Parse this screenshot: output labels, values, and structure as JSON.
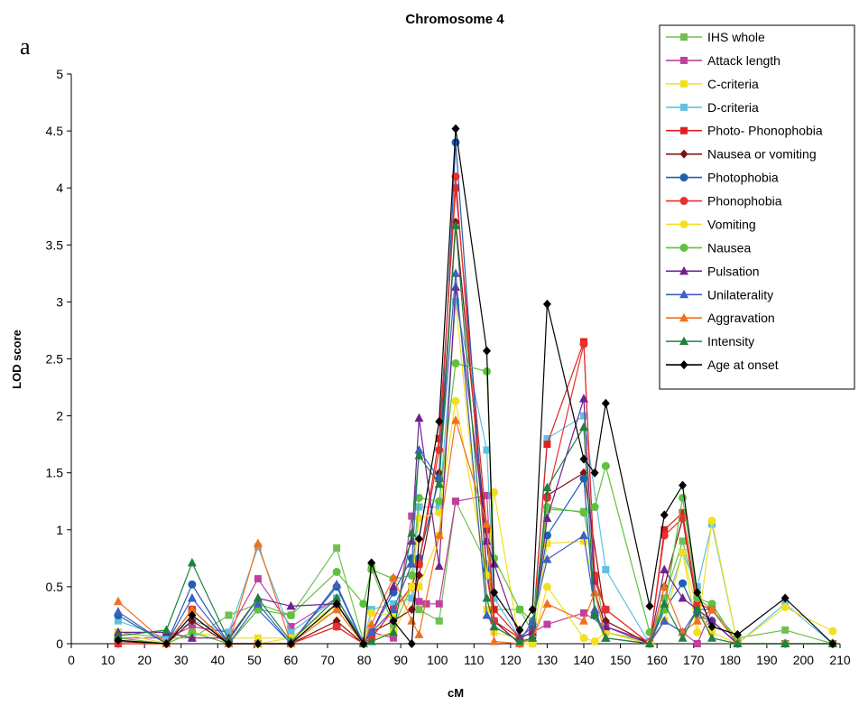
{
  "chart_data": {
    "type": "line",
    "panel_label": "a",
    "title": "Chromosome 4",
    "xlabel": "cM",
    "ylabel": "LOD score",
    "xlim": [
      0,
      210
    ],
    "ylim": [
      0,
      5
    ],
    "xticks": [
      0,
      10,
      20,
      30,
      40,
      50,
      60,
      70,
      80,
      90,
      100,
      110,
      120,
      130,
      140,
      150,
      160,
      170,
      180,
      190,
      200,
      210
    ],
    "yticks": [
      0,
      0.5,
      1,
      1.5,
      2,
      2.5,
      3,
      3.5,
      4,
      4.5,
      5
    ],
    "grid": false,
    "legend_position": "top-right",
    "series": [
      {
        "name": "IHS whole",
        "color": "#70c050",
        "marker": "square",
        "x": [
          12.8,
          26,
          33,
          43,
          51,
          60,
          72.5,
          79.8,
          82,
          88,
          93,
          95,
          100.5,
          105,
          113.5,
          115.5,
          122.5,
          126,
          130,
          140,
          146,
          158,
          162,
          167,
          171,
          175,
          182,
          195,
          208
        ],
        "y": [
          0.1,
          0.05,
          0.05,
          0.25,
          0.35,
          0.25,
          0.84,
          0.02,
          0.67,
          0.15,
          0.5,
          0.3,
          0.2,
          1.25,
          0.7,
          0.3,
          0.3,
          0.1,
          1.18,
          1.16,
          0.1,
          0.02,
          0.4,
          0.9,
          0.4,
          0.3,
          0.05,
          0.12,
          0
        ]
      },
      {
        "name": "Attack length",
        "color": "#c040a0",
        "marker": "square",
        "x": [
          12.8,
          26,
          33,
          43,
          51,
          60,
          72.5,
          79.8,
          82,
          88,
          93,
          95,
          97,
          100.5,
          105,
          113.5,
          115.5,
          122.5,
          126,
          130,
          140,
          146,
          158,
          162,
          167,
          171,
          175,
          182,
          195,
          208
        ],
        "y": [
          0.05,
          0.05,
          0.15,
          0.1,
          0.57,
          0.15,
          0.4,
          0.02,
          0.1,
          0.05,
          1.12,
          0.37,
          0.35,
          0.35,
          1.25,
          1.3,
          0.2,
          0.05,
          0.1,
          0.17,
          0.27,
          0.15,
          0.02,
          0.2,
          0.1,
          0,
          0.3,
          0,
          0,
          0
        ]
      },
      {
        "name": "C-criteria",
        "color": "#f0e020",
        "marker": "square",
        "x": [
          12.8,
          26,
          33,
          43,
          51,
          60,
          72.5,
          79.8,
          82,
          88,
          93,
          95,
          100.5,
          105,
          113.5,
          115.5,
          122.5,
          126,
          130,
          140,
          146,
          158,
          162,
          167,
          171,
          175,
          182,
          195,
          208
        ],
        "y": [
          0.05,
          0,
          0.1,
          0.05,
          0.05,
          0.05,
          0.35,
          0,
          0.05,
          0.1,
          0.4,
          0.5,
          0.95,
          3.0,
          0.3,
          0.1,
          0.05,
          0,
          0.88,
          0.9,
          0.1,
          0,
          0.2,
          0.8,
          0.3,
          0.1,
          0,
          0,
          0
        ]
      },
      {
        "name": "D-criteria",
        "color": "#60c0e0",
        "marker": "square",
        "x": [
          12.8,
          26,
          33,
          43,
          51,
          60,
          72.5,
          79.8,
          82,
          88,
          93,
          95,
          100.5,
          105,
          113.5,
          115.5,
          122.5,
          126,
          130,
          140,
          146,
          158,
          162,
          167,
          171,
          175,
          182,
          195,
          208
        ],
        "y": [
          0.2,
          0.05,
          0.2,
          0.1,
          0.85,
          0.1,
          0.4,
          0.02,
          0.3,
          0.35,
          0.4,
          1.2,
          1.2,
          3.0,
          1.7,
          0.4,
          0.05,
          0.1,
          1.8,
          2.0,
          0.65,
          0,
          0.3,
          0.8,
          0.5,
          1.05,
          0,
          0.35,
          0
        ]
      },
      {
        "name": "Photo- Phonophobia",
        "color": "#e02020",
        "marker": "square",
        "x": [
          12.8,
          26,
          33,
          43,
          51,
          60,
          72.5,
          79.8,
          82,
          88,
          93,
          95,
          100.5,
          105,
          113.5,
          115.5,
          122.5,
          126,
          130,
          140,
          143,
          146,
          158,
          162,
          167,
          171,
          175,
          182,
          195,
          208
        ],
        "y": [
          0,
          0,
          0.3,
          0,
          0,
          0,
          0.15,
          0,
          0.05,
          0.3,
          0.5,
          0.7,
          1.8,
          4.0,
          1.0,
          0.3,
          0.05,
          0.1,
          1.75,
          2.65,
          0.55,
          0.3,
          0,
          1.0,
          1.15,
          0.35,
          0.3,
          0,
          0,
          0
        ]
      },
      {
        "name": "Nausea or vomiting",
        "color": "#801010",
        "marker": "diamond",
        "x": [
          12.8,
          26,
          33,
          43,
          51,
          60,
          72.5,
          79.8,
          82,
          88,
          93,
          95,
          100.5,
          105,
          113.5,
          115.5,
          122.5,
          126,
          130,
          140,
          146,
          158,
          162,
          167,
          171,
          175,
          182,
          195,
          208
        ],
        "y": [
          0.02,
          0,
          0.2,
          0,
          0,
          0,
          0.2,
          0,
          0.1,
          0.2,
          0.3,
          0.6,
          1.5,
          3.7,
          0.9,
          0.2,
          0,
          0.05,
          1.3,
          1.5,
          0.2,
          0,
          0.5,
          1.1,
          0.3,
          0.2,
          0,
          0,
          0
        ]
      },
      {
        "name": "Photophobia",
        "color": "#2060b0",
        "marker": "circle",
        "x": [
          12.8,
          26,
          33,
          43,
          51,
          60,
          72.5,
          79.8,
          82,
          88,
          93,
          95,
          100.5,
          105,
          113.5,
          115.5,
          122.5,
          126,
          130,
          140,
          143,
          146,
          158,
          162,
          167,
          171,
          175,
          182,
          195,
          208
        ],
        "y": [
          0.25,
          0,
          0.52,
          0,
          0.3,
          0,
          0.5,
          0,
          0.1,
          0.45,
          0.75,
          0.75,
          1.45,
          4.4,
          0.65,
          0.2,
          0.05,
          0.15,
          0.95,
          1.45,
          0.25,
          0.1,
          0,
          0.3,
          0.53,
          0.25,
          0.2,
          0,
          0,
          0
        ]
      },
      {
        "name": "Phonophobia",
        "color": "#e83030",
        "marker": "circle",
        "x": [
          12.8,
          26,
          33,
          43,
          51,
          60,
          72.5,
          79.8,
          82,
          88,
          93,
          95,
          100.5,
          105,
          113.5,
          115.5,
          122.5,
          126,
          130,
          140,
          143,
          146,
          158,
          162,
          167,
          171,
          175,
          182,
          195,
          208
        ],
        "y": [
          0,
          0,
          0.3,
          0,
          0,
          0,
          0.15,
          0,
          0.05,
          0.3,
          0.5,
          0.7,
          1.7,
          4.1,
          0.6,
          0.2,
          0.05,
          0.1,
          1.28,
          2.63,
          0.6,
          0.3,
          0,
          0.95,
          1.1,
          0.35,
          0.3,
          0,
          0,
          0
        ]
      },
      {
        "name": "Vomiting",
        "color": "#f0e020",
        "marker": "circle",
        "x": [
          12.8,
          26,
          33,
          43,
          51,
          60,
          72.5,
          79.8,
          82,
          88,
          93,
          95,
          100.5,
          105,
          113.5,
          115.5,
          122.5,
          126,
          130,
          140,
          143,
          146,
          158,
          162,
          167,
          171,
          175,
          182,
          195,
          208
        ],
        "y": [
          0.1,
          0,
          0.1,
          0,
          0,
          0.05,
          0.3,
          0,
          0.27,
          0.25,
          0.5,
          1.1,
          1.15,
          2.13,
          0.6,
          1.33,
          0,
          0,
          0.5,
          0.05,
          0.02,
          0.1,
          0,
          0.2,
          0.8,
          0.1,
          1.08,
          0,
          0.32,
          0.11
        ]
      },
      {
        "name": "Nausea",
        "color": "#60c040",
        "marker": "circle",
        "x": [
          12.8,
          26,
          33,
          43,
          51,
          60,
          72.5,
          79.8,
          82,
          88,
          93,
          95,
          100.5,
          105,
          113.5,
          115.5,
          122.5,
          126,
          130,
          140,
          143,
          146,
          158,
          162,
          167,
          171,
          175,
          182,
          195,
          208
        ],
        "y": [
          0.05,
          0,
          0.1,
          0,
          0.3,
          0.25,
          0.63,
          0.35,
          0.65,
          0.57,
          0.6,
          1.28,
          1.25,
          2.46,
          2.39,
          0.75,
          0.3,
          0.2,
          1.2,
          1.15,
          1.2,
          1.56,
          0.1,
          0.3,
          1.28,
          0.4,
          0.35,
          0,
          0,
          0
        ]
      },
      {
        "name": "Pulsation",
        "color": "#702090",
        "marker": "triangle",
        "x": [
          12.8,
          26,
          33,
          43,
          51,
          60,
          72.5,
          79.8,
          82,
          88,
          93,
          95,
          100.5,
          105,
          113.5,
          115.5,
          122.5,
          126,
          130,
          140,
          143,
          146,
          158,
          162,
          167,
          171,
          175,
          182,
          195,
          208
        ],
        "y": [
          0.1,
          0.1,
          0.05,
          0.05,
          0.4,
          0.33,
          0.35,
          0.02,
          0.1,
          0.5,
          0.9,
          1.98,
          0.68,
          3.13,
          0.9,
          0.7,
          0.05,
          0.1,
          1.1,
          2.15,
          0.45,
          0.15,
          0,
          0.65,
          0.4,
          0.3,
          0.2,
          0,
          0,
          0
        ]
      },
      {
        "name": "Unilaterality",
        "color": "#4060c0",
        "marker": "triangle",
        "x": [
          12.8,
          26,
          33,
          43,
          51,
          60,
          72.5,
          79.8,
          82,
          88,
          93,
          95,
          100.5,
          105,
          113.5,
          115.5,
          122.5,
          126,
          130,
          140,
          143,
          146,
          158,
          162,
          167,
          171,
          175,
          182,
          195,
          208
        ],
        "y": [
          0.28,
          0,
          0.4,
          0,
          0.35,
          0,
          0.52,
          0,
          0.1,
          0.3,
          0.7,
          1.7,
          1.45,
          3.25,
          0.25,
          0.15,
          0.02,
          0.2,
          0.74,
          0.95,
          0.3,
          0.05,
          0,
          0.2,
          0.1,
          0.3,
          0.3,
          0,
          0,
          0
        ]
      },
      {
        "name": "Aggravation",
        "color": "#f07020",
        "marker": "triangle",
        "x": [
          12.8,
          26,
          33,
          43,
          51,
          60,
          72.5,
          79.8,
          82,
          88,
          93,
          95,
          100.5,
          105,
          113.5,
          115.5,
          122.5,
          126,
          130,
          140,
          143,
          146,
          158,
          162,
          167,
          171,
          175,
          182,
          195,
          208
        ],
        "y": [
          0.37,
          0,
          0.3,
          0,
          0.88,
          0,
          0.3,
          0,
          0.17,
          0.58,
          0.2,
          0.08,
          0.95,
          1.96,
          1.05,
          0.02,
          0,
          0.05,
          0.35,
          0.2,
          0.45,
          0.05,
          0,
          0.5,
          0.1,
          0.2,
          0.3,
          0,
          0,
          0
        ]
      },
      {
        "name": "Intensity",
        "color": "#208040",
        "marker": "triangle",
        "x": [
          12.8,
          26,
          33,
          43,
          51,
          60,
          72.5,
          79.8,
          82,
          88,
          93,
          95,
          100.5,
          105,
          113.5,
          115.5,
          122.5,
          126,
          130,
          140,
          143,
          146,
          158,
          162,
          167,
          171,
          175,
          182,
          195,
          208
        ],
        "y": [
          0.07,
          0.12,
          0.71,
          0.03,
          0.4,
          0.02,
          0.4,
          0,
          0.02,
          0.1,
          0.97,
          1.65,
          1.4,
          3.67,
          0.4,
          0.15,
          0.02,
          0.05,
          1.37,
          1.9,
          0.25,
          0.05,
          0,
          0.35,
          0.05,
          0.3,
          0.05,
          0,
          0,
          0
        ]
      },
      {
        "name": "Age at onset",
        "color": "#000000",
        "marker": "diamond",
        "x": [
          12.8,
          26,
          33,
          43,
          51,
          60,
          72.5,
          79.8,
          82,
          88,
          93,
          95,
          100.5,
          105,
          113.5,
          115.5,
          122.5,
          126,
          130,
          140,
          143,
          146,
          158,
          162,
          167,
          171,
          175,
          182,
          195,
          208
        ],
        "y": [
          0.03,
          0,
          0.25,
          0,
          0,
          0,
          0.35,
          0,
          0.71,
          0.2,
          0,
          0.92,
          1.95,
          4.52,
          2.57,
          0.45,
          0.12,
          0.3,
          2.98,
          1.62,
          1.5,
          2.11,
          0.33,
          1.13,
          1.39,
          0.45,
          0.15,
          0.08,
          0.4,
          0
        ]
      }
    ]
  }
}
